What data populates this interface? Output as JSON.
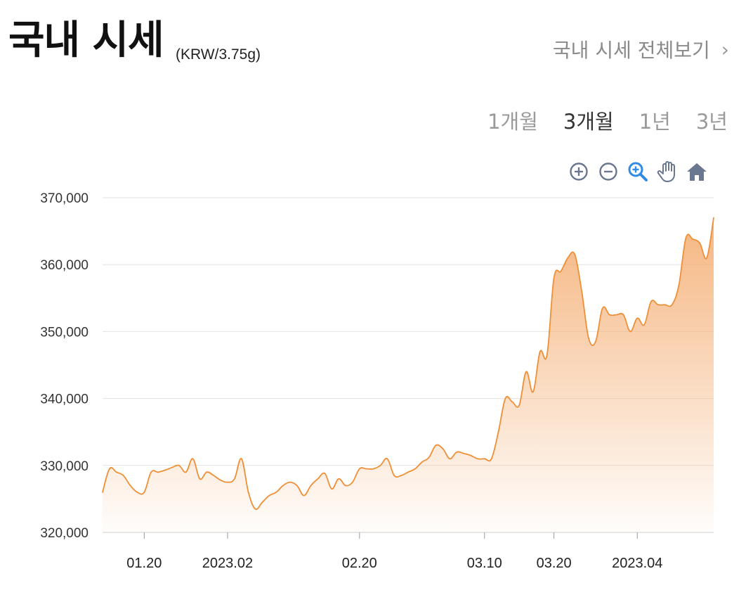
{
  "header": {
    "title": "국내 시세",
    "unit": "(KRW/3.75g)",
    "view_all": "국내 시세 전체보기",
    "chevron": "›"
  },
  "tabs": [
    {
      "label": "1개월",
      "active": false
    },
    {
      "label": "3개월",
      "active": true
    },
    {
      "label": "1년",
      "active": false
    },
    {
      "label": "3년",
      "active": false
    }
  ],
  "toolbar": [
    "zoom-in-icon",
    "zoom-out-icon",
    "magnify-zoom-icon",
    "pan-hand-icon",
    "home-reset-icon"
  ],
  "colors": {
    "line": "#ef8f36",
    "fill_top": "#f5b27a",
    "grid": "#e2e2e2",
    "tool": "#6b7790",
    "tool_active": "#2f8be6"
  },
  "chart_data": {
    "type": "area",
    "ylim": [
      320000,
      370000
    ],
    "yticks": [
      "370,000",
      "360,000",
      "350,000",
      "340,000",
      "330,000",
      "320,000"
    ],
    "ytick_values": [
      370000,
      360000,
      350000,
      340000,
      330000,
      320000
    ],
    "xtick_labels": [
      "01.20",
      "2023.02",
      "02.20",
      "03.10",
      "03.20",
      "2023.04"
    ],
    "xtick_dates": [
      "2023-01-20",
      "2023-02-01",
      "2023-02-20",
      "2023-03-10",
      "2023-03-20",
      "2023-04-01"
    ],
    "x_range": [
      "2023-01-14",
      "2023-04-12"
    ],
    "series": [
      {
        "points": [
          [
            "2023-01-14",
            326000
          ],
          [
            "2023-01-15",
            329500
          ],
          [
            "2023-01-16",
            329000
          ],
          [
            "2023-01-17",
            328500
          ],
          [
            "2023-01-18",
            327000
          ],
          [
            "2023-01-19",
            326000
          ],
          [
            "2023-01-20",
            326000
          ],
          [
            "2023-01-21",
            329000
          ],
          [
            "2023-01-22",
            329000
          ],
          [
            "2023-01-23",
            329300
          ],
          [
            "2023-01-24",
            329700
          ],
          [
            "2023-01-25",
            330000
          ],
          [
            "2023-01-26",
            329000
          ],
          [
            "2023-01-27",
            331000
          ],
          [
            "2023-01-28",
            328000
          ],
          [
            "2023-01-29",
            329000
          ],
          [
            "2023-01-30",
            328500
          ],
          [
            "2023-01-31",
            327800
          ],
          [
            "2023-02-01",
            327500
          ],
          [
            "2023-02-02",
            328000
          ],
          [
            "2023-02-03",
            331000
          ],
          [
            "2023-02-04",
            326000
          ],
          [
            "2023-02-05",
            323500
          ],
          [
            "2023-02-06",
            324500
          ],
          [
            "2023-02-07",
            325500
          ],
          [
            "2023-02-08",
            326000
          ],
          [
            "2023-02-09",
            327000
          ],
          [
            "2023-02-10",
            327500
          ],
          [
            "2023-02-11",
            327000
          ],
          [
            "2023-02-12",
            325500
          ],
          [
            "2023-02-13",
            327000
          ],
          [
            "2023-02-14",
            328000
          ],
          [
            "2023-02-15",
            328800
          ],
          [
            "2023-02-16",
            326500
          ],
          [
            "2023-02-17",
            328000
          ],
          [
            "2023-02-18",
            327000
          ],
          [
            "2023-02-19",
            327500
          ],
          [
            "2023-02-20",
            329500
          ],
          [
            "2023-02-21",
            329500
          ],
          [
            "2023-02-22",
            329500
          ],
          [
            "2023-02-23",
            330000
          ],
          [
            "2023-02-24",
            331000
          ],
          [
            "2023-02-25",
            328500
          ],
          [
            "2023-02-26",
            328500
          ],
          [
            "2023-02-27",
            329000
          ],
          [
            "2023-02-28",
            329500
          ],
          [
            "2023-03-01",
            330500
          ],
          [
            "2023-03-02",
            331200
          ],
          [
            "2023-03-03",
            333000
          ],
          [
            "2023-03-04",
            332500
          ],
          [
            "2023-03-05",
            331000
          ],
          [
            "2023-03-06",
            332000
          ],
          [
            "2023-03-07",
            331800
          ],
          [
            "2023-03-08",
            331500
          ],
          [
            "2023-03-09",
            331000
          ],
          [
            "2023-03-10",
            331000
          ],
          [
            "2023-03-11",
            331000
          ],
          [
            "2023-03-12",
            335000
          ],
          [
            "2023-03-13",
            340000
          ],
          [
            "2023-03-14",
            339500
          ],
          [
            "2023-03-15",
            339000
          ],
          [
            "2023-03-16",
            344000
          ],
          [
            "2023-03-17",
            341000
          ],
          [
            "2023-03-18",
            347000
          ],
          [
            "2023-03-19",
            346500
          ],
          [
            "2023-03-20",
            358000
          ],
          [
            "2023-03-21",
            359000
          ],
          [
            "2023-03-22",
            361000
          ],
          [
            "2023-03-23",
            361500
          ],
          [
            "2023-03-24",
            356000
          ],
          [
            "2023-03-25",
            349000
          ],
          [
            "2023-03-26",
            348500
          ],
          [
            "2023-03-27",
            353500
          ],
          [
            "2023-03-28",
            352500
          ],
          [
            "2023-03-29",
            352500
          ],
          [
            "2023-03-30",
            352500
          ],
          [
            "2023-03-31",
            350000
          ],
          [
            "2023-04-01",
            352000
          ],
          [
            "2023-04-02",
            351000
          ],
          [
            "2023-04-03",
            354500
          ],
          [
            "2023-04-04",
            354000
          ],
          [
            "2023-04-05",
            354000
          ],
          [
            "2023-04-06",
            354000
          ],
          [
            "2023-04-07",
            357000
          ],
          [
            "2023-04-08",
            364000
          ],
          [
            "2023-04-09",
            363800
          ],
          [
            "2023-04-10",
            363200
          ],
          [
            "2023-04-11",
            361000
          ],
          [
            "2023-04-12",
            367000
          ]
        ]
      }
    ],
    "grid": true,
    "legend": "none"
  }
}
